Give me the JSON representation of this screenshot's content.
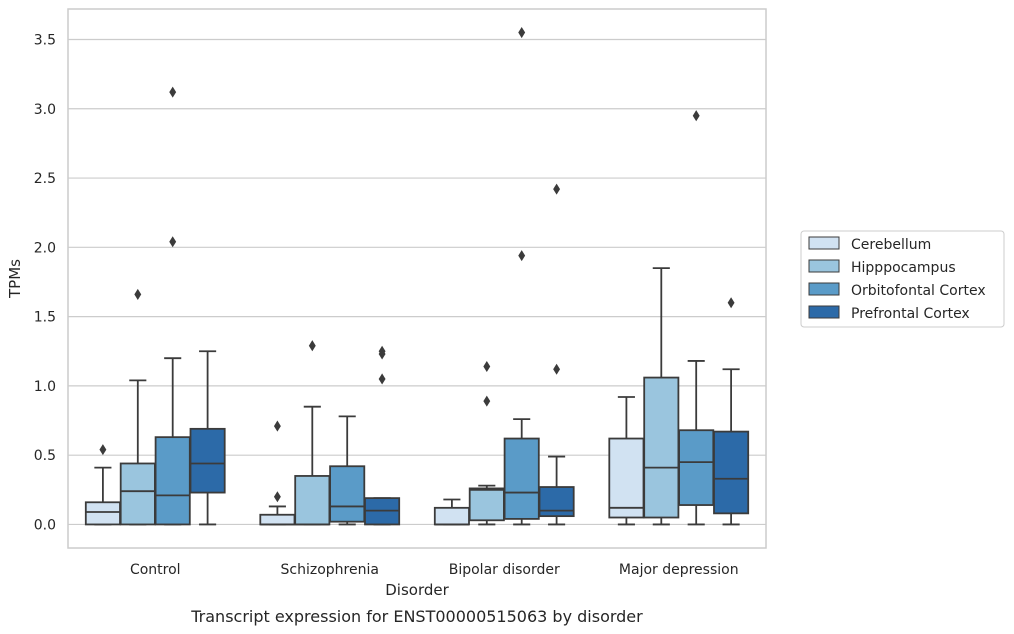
{
  "chart_data": {
    "type": "boxplot",
    "title": "",
    "caption": "Transcript expression for ENST00000515063 by disorder",
    "xlabel": "Disorder",
    "ylabel": "TPMs",
    "ylim": [
      -0.17,
      3.72
    ],
    "yticks": [
      0.0,
      0.5,
      1.0,
      1.5,
      2.0,
      2.5,
      3.0,
      3.5
    ],
    "ytick_labels": [
      "0.0",
      "0.5",
      "1.0",
      "1.5",
      "2.0",
      "2.5",
      "3.0",
      "3.5"
    ],
    "grid": "horizontal",
    "legend_position": "right",
    "categories": [
      "Control",
      "Schizophrenia",
      "Bipolar disorder",
      "Major depression"
    ],
    "series": [
      {
        "name": "Cerebellum",
        "color": "#d1e2f2",
        "boxes": [
          {
            "whislo": 0.0,
            "q1": 0.0,
            "med": 0.09,
            "q3": 0.16,
            "whishi": 0.41,
            "fliers": [
              0.54
            ]
          },
          {
            "whislo": 0.0,
            "q1": 0.0,
            "med": 0.0,
            "q3": 0.07,
            "whishi": 0.13,
            "fliers": [
              0.2,
              0.71
            ]
          },
          {
            "whislo": 0.0,
            "q1": 0.0,
            "med": 0.0,
            "q3": 0.12,
            "whishi": 0.18,
            "fliers": []
          },
          {
            "whislo": 0.0,
            "q1": 0.05,
            "med": 0.12,
            "q3": 0.62,
            "whishi": 0.92,
            "fliers": []
          }
        ]
      },
      {
        "name": "Hipppocampus",
        "color": "#9ac5de",
        "boxes": [
          {
            "whislo": 0.0,
            "q1": 0.0,
            "med": 0.24,
            "q3": 0.44,
            "whishi": 1.04,
            "fliers": [
              1.66
            ]
          },
          {
            "whislo": 0.0,
            "q1": 0.0,
            "med": 0.0,
            "q3": 0.35,
            "whishi": 0.85,
            "fliers": [
              1.29
            ]
          },
          {
            "whislo": 0.0,
            "q1": 0.03,
            "med": 0.25,
            "q3": 0.26,
            "whishi": 0.28,
            "fliers": [
              0.89,
              1.14
            ]
          },
          {
            "whislo": 0.0,
            "q1": 0.05,
            "med": 0.41,
            "q3": 1.06,
            "whishi": 1.85,
            "fliers": []
          }
        ]
      },
      {
        "name": "Orbitofontal Cortex",
        "color": "#5a9bc8",
        "boxes": [
          {
            "whislo": 0.0,
            "q1": 0.0,
            "med": 0.21,
            "q3": 0.63,
            "whishi": 1.2,
            "fliers": [
              2.04,
              3.12
            ]
          },
          {
            "whislo": 0.0,
            "q1": 0.02,
            "med": 0.13,
            "q3": 0.42,
            "whishi": 0.78,
            "fliers": []
          },
          {
            "whislo": 0.0,
            "q1": 0.04,
            "med": 0.23,
            "q3": 0.62,
            "whishi": 0.76,
            "fliers": [
              1.94,
              3.55
            ]
          },
          {
            "whislo": 0.0,
            "q1": 0.14,
            "med": 0.45,
            "q3": 0.68,
            "whishi": 1.18,
            "fliers": [
              2.95
            ]
          }
        ]
      },
      {
        "name": "Prefrontal Cortex",
        "color": "#2c6aa8",
        "boxes": [
          {
            "whislo": 0.0,
            "q1": 0.23,
            "med": 0.44,
            "q3": 0.69,
            "whishi": 1.25,
            "fliers": []
          },
          {
            "whislo": 0.0,
            "q1": 0.0,
            "med": 0.1,
            "q3": 0.19,
            "whishi": 0.19,
            "fliers": [
              1.05,
              1.23,
              1.25
            ]
          },
          {
            "whislo": 0.0,
            "q1": 0.06,
            "med": 0.1,
            "q3": 0.27,
            "whishi": 0.49,
            "fliers": [
              1.12,
              2.42
            ]
          },
          {
            "whislo": 0.0,
            "q1": 0.08,
            "med": 0.33,
            "q3": 0.67,
            "whishi": 1.12,
            "fliers": [
              1.6
            ]
          }
        ]
      }
    ]
  }
}
